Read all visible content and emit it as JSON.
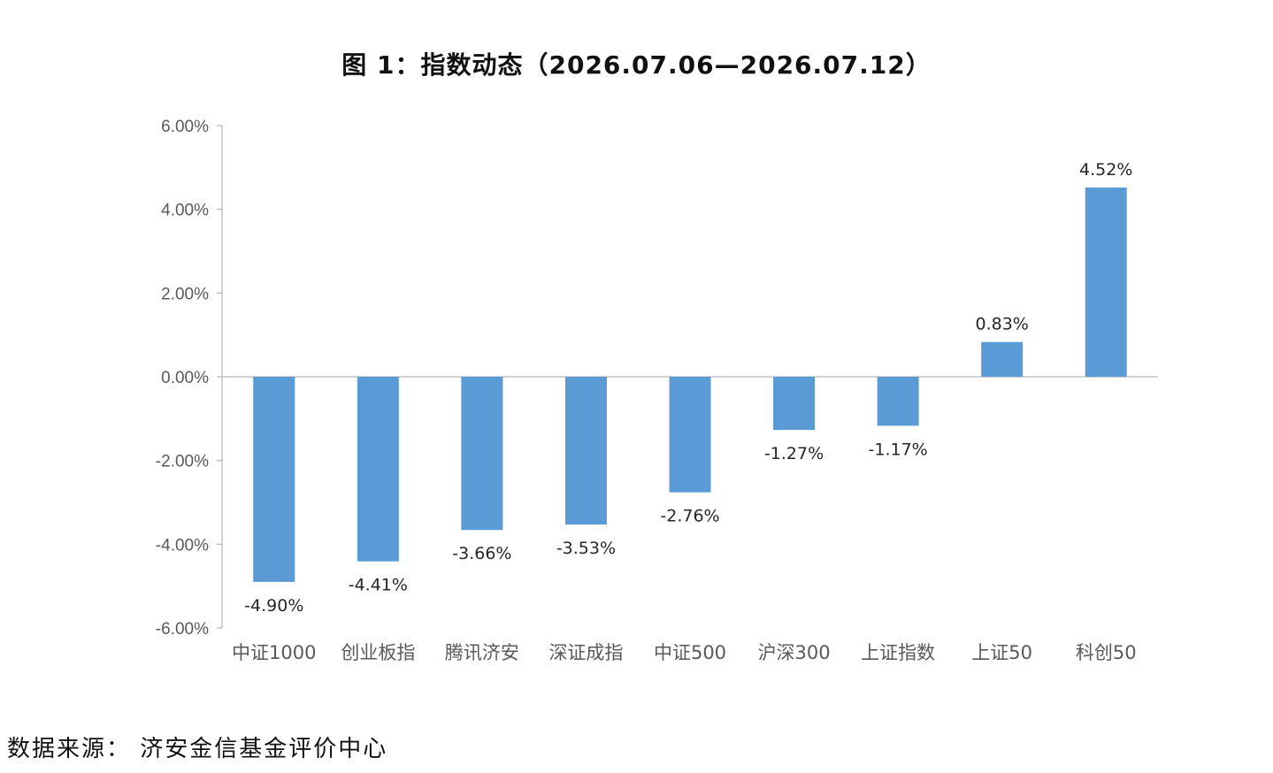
{
  "chart_data": {
    "type": "bar",
    "title": "图 1：指数动态（2026.07.06—2026.07.12）",
    "categories": [
      "中证1000",
      "创业板指",
      "腾讯济安",
      "深证成指",
      "中证500",
      "沪深300",
      "上证指数",
      "上证50",
      "科创50"
    ],
    "values": [
      -4.9,
      -4.41,
      -3.66,
      -3.53,
      -2.76,
      -1.27,
      -1.17,
      0.83,
      4.52
    ],
    "data_labels": [
      "-4.90%",
      "-4.41%",
      "-3.66%",
      "-3.53%",
      "-2.76%",
      "-1.27%",
      "-1.17%",
      "0.83%",
      "4.52%"
    ],
    "ylim": [
      -6,
      6
    ],
    "yticks": [
      6,
      4,
      2,
      0,
      -2,
      -4,
      -6
    ],
    "ytick_labels": [
      "6.00%",
      "4.00%",
      "2.00%",
      "0.00%",
      "-2.00%",
      "-4.00%",
      "-6.00%"
    ],
    "xlabel": "",
    "ylabel": "",
    "grid": false,
    "legend": "none",
    "bar_color": "#5B9BD5",
    "axis_color": "#A6A6A6"
  },
  "footer": {
    "source": "数据来源：  济安金信基金评价中心"
  }
}
